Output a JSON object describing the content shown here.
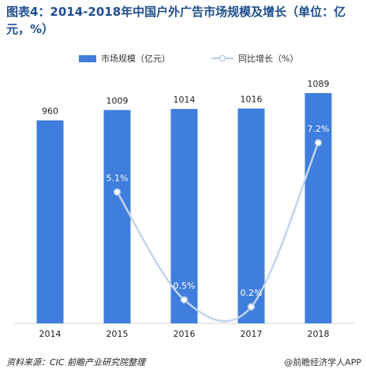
{
  "title": "图表4：2014-2018年中国户外广告市场规模及增长（单位：亿元，%）",
  "source": "资料来源：CIC 前瞻产业研究院整理",
  "brand": "@前瞻经济学人APP",
  "colors": {
    "bar": "#3f7edc",
    "line": "#c2d4ea",
    "point": "#ffffff",
    "point_stroke": "#a9c2e2"
  },
  "chart_data": {
    "type": "bar",
    "categories": [
      "2014",
      "2015",
      "2016",
      "2017",
      "2018"
    ],
    "series": [
      {
        "name": "市场规模（亿元）",
        "type": "bar",
        "values": [
          960,
          1009,
          1014,
          1016,
          1089
        ],
        "labels": [
          "960",
          "1009",
          "1014",
          "1016",
          "1089"
        ]
      },
      {
        "name": "同比增长（%）",
        "type": "line",
        "values": [
          null,
          5.1,
          0.5,
          0.2,
          7.2
        ],
        "labels": [
          "",
          "5.1%",
          "0.5%",
          "0.2%",
          "7.2%"
        ]
      }
    ],
    "legend_position": "top",
    "grid": false
  }
}
